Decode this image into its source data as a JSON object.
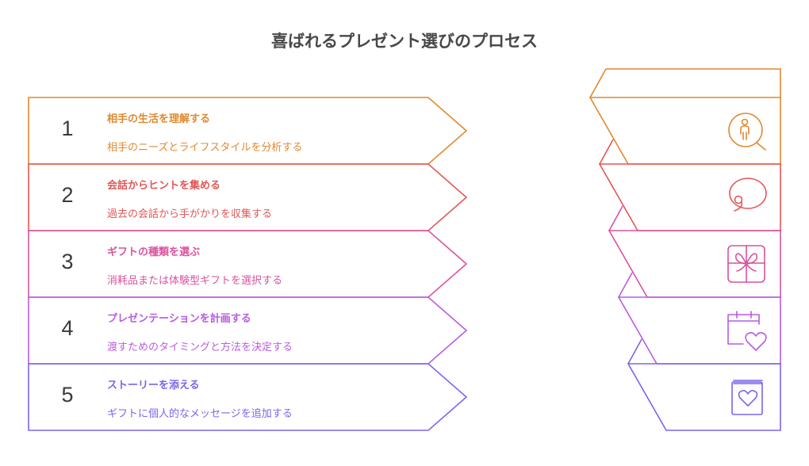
{
  "title": "喜ばれるプレゼント選びのプロセス",
  "steps": [
    {
      "number": "1",
      "heading": "相手の生活を理解する",
      "description": "相手のニーズとライフスタイルを分析する",
      "color": "#E0892F",
      "icon": "person-search-icon"
    },
    {
      "number": "2",
      "heading": "会話からヒントを集める",
      "description": "過去の会話から手がかりを収集する",
      "color": "#E25656",
      "icon": "speech-bubble-icon"
    },
    {
      "number": "3",
      "heading": "ギフトの種類を選ぶ",
      "description": "消耗品または体験型ギフトを選択する",
      "color": "#D9529F",
      "icon": "gift-box-icon"
    },
    {
      "number": "4",
      "heading": "プレゼンテーションを計画する",
      "description": "渡すためのタイミングと方法を決定する",
      "color": "#B95CE0",
      "icon": "calendar-heart-icon"
    },
    {
      "number": "5",
      "heading": "ストーリーを添える",
      "description": "ギフトに個人的なメッセージを追加する",
      "color": "#7B66E8",
      "icon": "book-heart-icon"
    }
  ]
}
